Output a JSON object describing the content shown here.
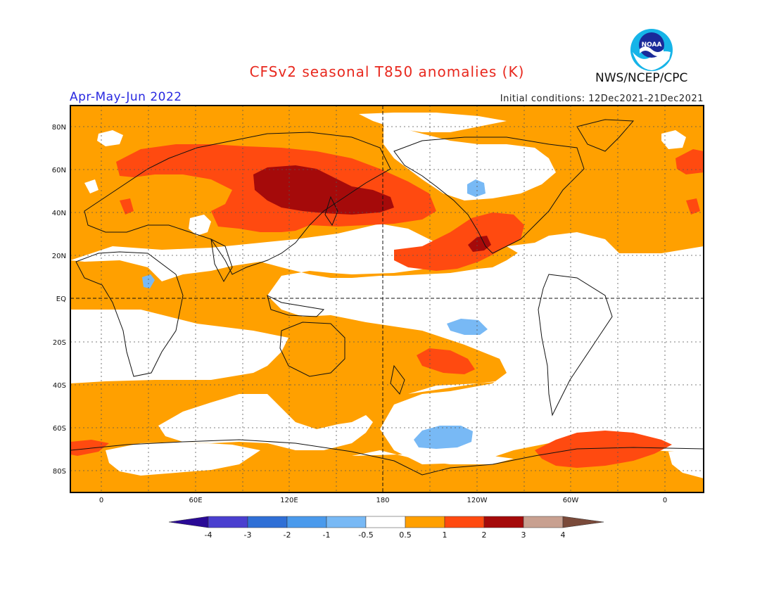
{
  "header": {
    "title": "CFSv2 seasonal T850 anomalies (K)",
    "period": "Apr-May-Jun 2022",
    "initial_conditions": "Initial conditions: 12Dec2021-21Dec2021",
    "agency": "NWS/NCEP/CPC",
    "logo_text": "NOAA"
  },
  "map": {
    "lat_labels": [
      "80N",
      "60N",
      "40N",
      "20N",
      "EQ",
      "20S",
      "40S",
      "60S",
      "80S"
    ],
    "lon_labels": [
      "0",
      "60E",
      "120E",
      "180",
      "120W",
      "60W",
      "0"
    ]
  },
  "colorbar": {
    "labels": [
      "-4",
      "-3",
      "-2",
      "-1",
      "-0.5",
      "0.5",
      "1",
      "2",
      "3",
      "4"
    ],
    "colors": [
      "#2a0a96",
      "#4a3fcf",
      "#2f6fd6",
      "#4a9aec",
      "#78b9f5",
      "#ffffff",
      "#ffa000",
      "#ff4a10",
      "#a50a0a",
      "#c8a090",
      "#7a4a3a"
    ]
  },
  "colors": {
    "orange": "#ffa000",
    "red": "#ff4a10",
    "darkred": "#a50a0a",
    "lightblue": "#78b9f5"
  }
}
